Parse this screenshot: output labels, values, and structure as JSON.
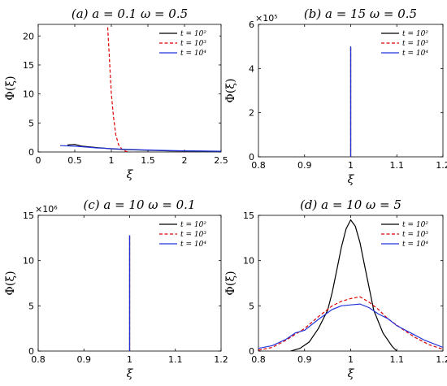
{
  "chart_data": [
    {
      "type": "line",
      "title": "(a) a = 0.1 ω = 0.5",
      "xlabel": "ξ",
      "ylabel": "Φ(ξ)",
      "xlim": [
        0,
        2.5
      ],
      "ylim": [
        0,
        22
      ],
      "xticks": [
        "0",
        "0.5",
        "1",
        "1.5",
        "2",
        "2.5"
      ],
      "yticks": [
        "0",
        "5",
        "10",
        "15",
        "20"
      ],
      "multiplier": "",
      "legend": "top-right",
      "series": [
        {
          "name": "t = 10²",
          "color": "#000000",
          "dash": "solid",
          "x": [
            0.4,
            0.5,
            0.6,
            0.8,
            1.0,
            1.2,
            1.5,
            1.8,
            2.1,
            2.5
          ],
          "y": [
            1.2,
            1.3,
            1.0,
            0.75,
            0.55,
            0.4,
            0.3,
            0.2,
            0.15,
            0.1
          ]
        },
        {
          "name": "t = 10³",
          "color": "#dd0000",
          "dash": "dashed",
          "x": [
            0.95,
            1.0,
            1.03,
            1.06,
            1.1,
            1.15,
            1.2,
            1.25
          ],
          "y": [
            21.5,
            10.0,
            6.0,
            3.0,
            1.2,
            0.4,
            0.1,
            0.0
          ]
        },
        {
          "name": "t = 10⁴",
          "color": "#2233dd",
          "dash": "solid",
          "x": [
            0.3,
            0.5,
            0.8,
            1.2,
            1.6,
            2.0,
            2.5
          ],
          "y": [
            1.1,
            1.0,
            0.7,
            0.45,
            0.3,
            0.2,
            0.12
          ]
        }
      ]
    },
    {
      "type": "line",
      "title": "(b) a = 15 ω = 0.5",
      "xlabel": "ξ",
      "ylabel": "Φ(ξ)",
      "xlim": [
        0.8,
        1.2
      ],
      "ylim": [
        0,
        6
      ],
      "xticks": [
        "0.8",
        "0.9",
        "1",
        "1.1",
        "1.2"
      ],
      "yticks": [
        "0",
        "2",
        "4",
        "6"
      ],
      "multiplier": "×10⁵",
      "legend": "top-right",
      "series": [
        {
          "name": "t = 10²",
          "color": "#000000",
          "dash": "solid",
          "x": [
            1.0,
            1.0
          ],
          "y": [
            0,
            5.0
          ]
        },
        {
          "name": "t = 10³",
          "color": "#dd0000",
          "dash": "dashed",
          "x": [
            1.0,
            1.0
          ],
          "y": [
            0,
            5.0
          ]
        },
        {
          "name": "t = 10⁴",
          "color": "#2233dd",
          "dash": "solid",
          "x": [
            1.0,
            1.0
          ],
          "y": [
            0,
            5.0
          ]
        }
      ]
    },
    {
      "type": "line",
      "title": "(c) a = 10 ω = 0.1",
      "xlabel": "ξ",
      "ylabel": "Φ(ξ)",
      "xlim": [
        0.8,
        1.2
      ],
      "ylim": [
        0,
        15
      ],
      "xticks": [
        "0.8",
        "0.9",
        "1",
        "1.1",
        "1.2"
      ],
      "yticks": [
        "0",
        "5",
        "10",
        "15"
      ],
      "multiplier": "×10⁶",
      "legend": "top-right",
      "series": [
        {
          "name": "t = 10²",
          "color": "#000000",
          "dash": "solid",
          "x": [
            1.0,
            1.0
          ],
          "y": [
            0,
            12.8
          ]
        },
        {
          "name": "t = 10³",
          "color": "#dd0000",
          "dash": "dashed",
          "x": [
            1.0,
            1.0
          ],
          "y": [
            0,
            12.8
          ]
        },
        {
          "name": "t = 10⁴",
          "color": "#2233dd",
          "dash": "solid",
          "x": [
            1.0,
            1.0
          ],
          "y": [
            0,
            12.8
          ]
        }
      ]
    },
    {
      "type": "line",
      "title": "(d) a = 10 ω = 5",
      "xlabel": "ξ",
      "ylabel": "Φ(ξ)",
      "xlim": [
        0.8,
        1.2
      ],
      "ylim": [
        0,
        15
      ],
      "xticks": [
        "0.8",
        "0.9",
        "1",
        "1.1",
        "1.2"
      ],
      "yticks": [
        "0",
        "5",
        "10",
        "15"
      ],
      "multiplier": "",
      "legend": "top-right",
      "series": [
        {
          "name": "t = 10²",
          "color": "#000000",
          "dash": "solid",
          "x": [
            0.87,
            0.89,
            0.91,
            0.93,
            0.95,
            0.96,
            0.97,
            0.98,
            0.99,
            1.0,
            1.01,
            1.02,
            1.03,
            1.04,
            1.05,
            1.07,
            1.09,
            1.1
          ],
          "y": [
            0,
            0.3,
            1.0,
            2.5,
            4.5,
            6.5,
            9.0,
            11.5,
            13.5,
            14.5,
            13.8,
            12.0,
            9.5,
            7.0,
            4.5,
            2.0,
            0.5,
            0
          ]
        },
        {
          "name": "t = 10³",
          "color": "#dd0000",
          "dash": "dashed",
          "x": [
            0.8,
            0.83,
            0.86,
            0.9,
            0.93,
            0.96,
            0.98,
            1.0,
            1.02,
            1.04,
            1.06,
            1.08,
            1.11,
            1.14,
            1.17,
            1.2
          ],
          "y": [
            0.1,
            0.4,
            1.2,
            2.5,
            3.8,
            5.0,
            5.5,
            5.8,
            6.0,
            5.4,
            4.6,
            3.6,
            2.5,
            1.5,
            0.7,
            0.2
          ]
        },
        {
          "name": "t = 10⁴",
          "color": "#2233dd",
          "dash": "solid",
          "x": [
            0.8,
            0.83,
            0.86,
            0.88,
            0.9,
            0.93,
            0.96,
            0.98,
            1.0,
            1.02,
            1.04,
            1.06,
            1.08,
            1.1,
            1.13,
            1.16,
            1.2
          ],
          "y": [
            0.3,
            0.6,
            1.3,
            2.0,
            2.3,
            3.5,
            4.6,
            5.0,
            5.1,
            5.2,
            4.8,
            4.1,
            3.6,
            2.8,
            2.0,
            1.2,
            0.4
          ]
        }
      ]
    }
  ]
}
